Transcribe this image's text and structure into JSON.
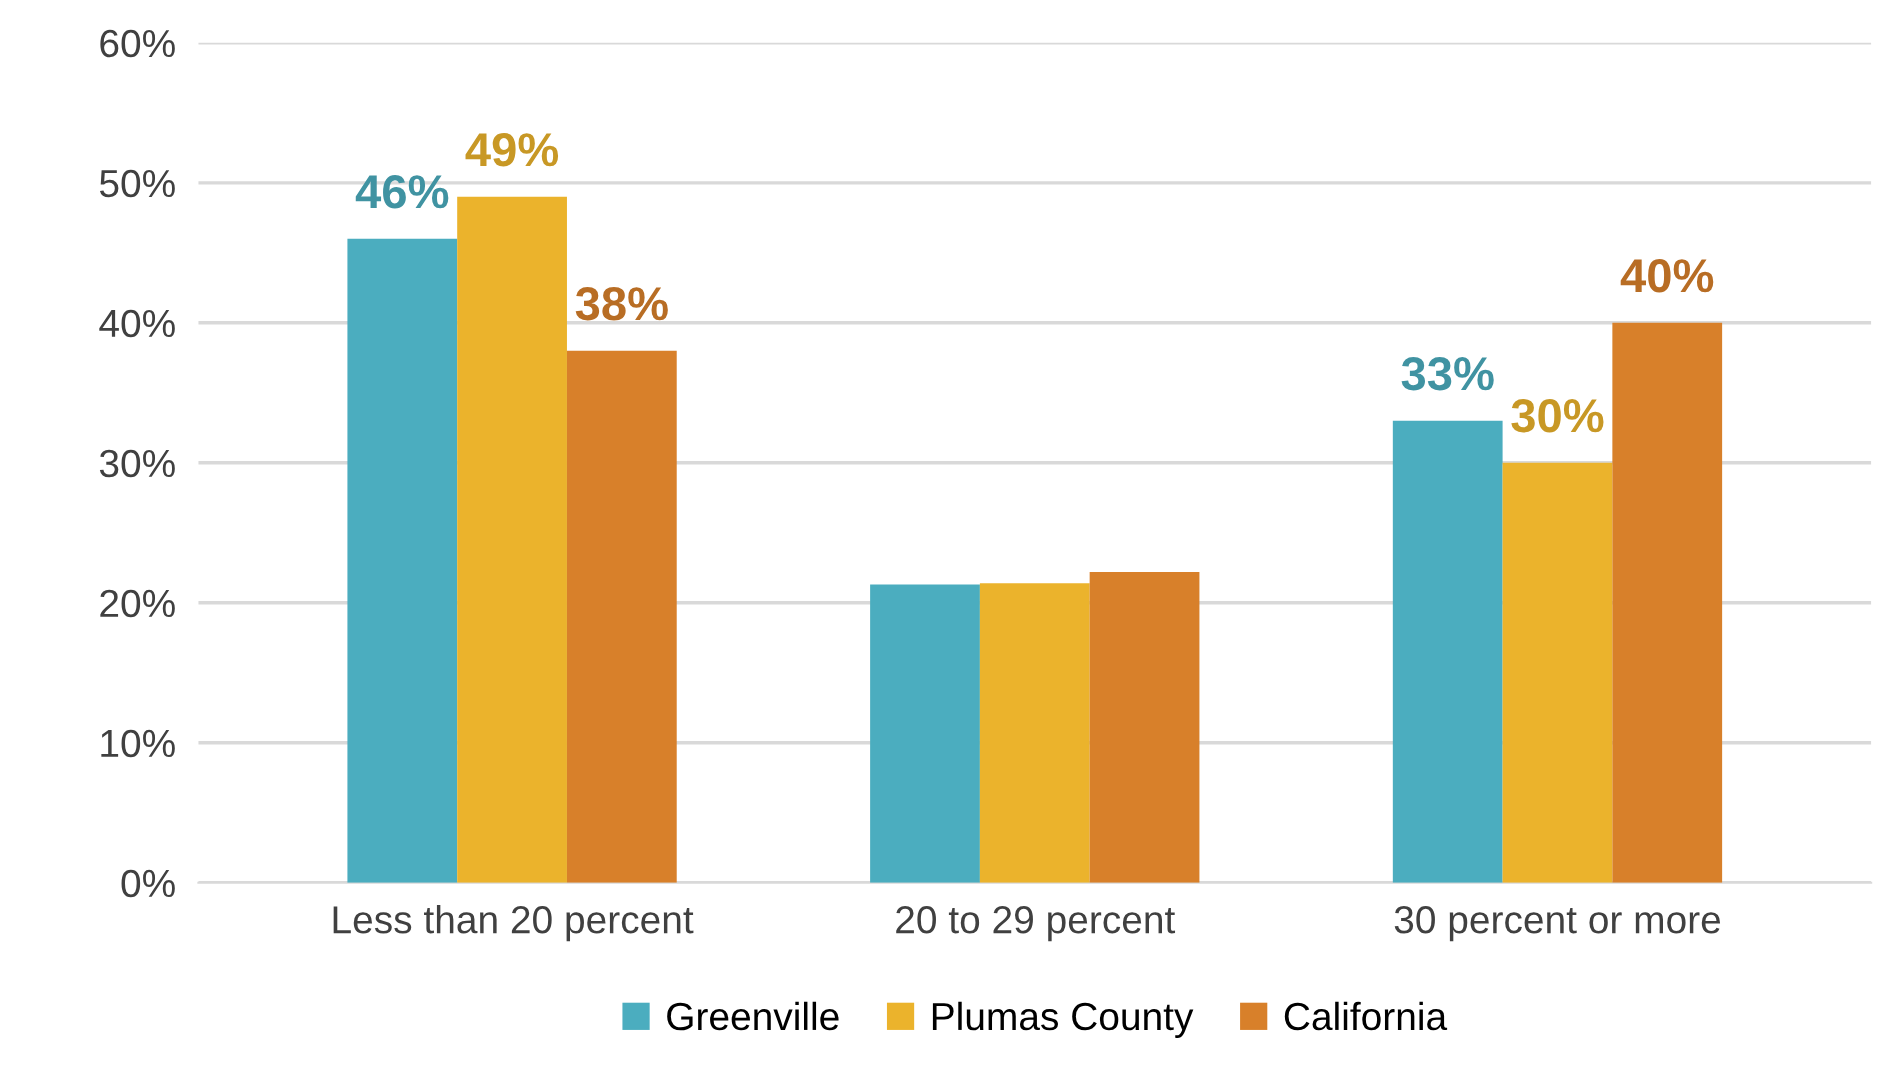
{
  "chart_data": {
    "type": "bar",
    "categories": [
      "Less than 20 percent",
      "20 to 29 percent",
      "30 percent or more"
    ],
    "series": [
      {
        "name": "Greenville",
        "color": "#4badbf",
        "values": [
          46,
          21.3,
          33
        ],
        "value_labels": [
          "46%",
          null,
          "33%"
        ]
      },
      {
        "name": "Plumas County",
        "color": "#ebb32c",
        "values": [
          49,
          21.4,
          30
        ],
        "value_labels": [
          "49%",
          null,
          "30%"
        ]
      },
      {
        "name": "California",
        "color": "#d8802a",
        "values": [
          38,
          22.2,
          40
        ],
        "value_labels": [
          "38%",
          null,
          "40%"
        ]
      }
    ],
    "ylim": [
      0,
      60
    ],
    "yticks": [
      {
        "value": 0,
        "label": "0%"
      },
      {
        "value": 10,
        "label": "10%"
      },
      {
        "value": 20,
        "label": "20%"
      },
      {
        "value": 30,
        "label": "30%"
      },
      {
        "value": 40,
        "label": "40%"
      },
      {
        "value": 50,
        "label": "50%"
      },
      {
        "value": 60,
        "label": "60%"
      }
    ],
    "grid": "y",
    "legend": "bottom"
  }
}
